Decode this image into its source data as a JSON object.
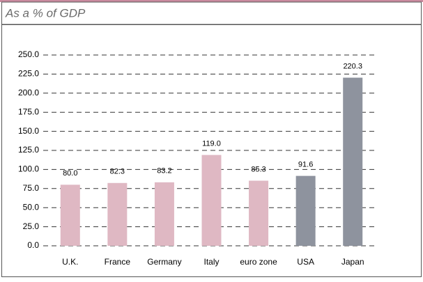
{
  "chart_data": {
    "type": "bar",
    "title": "As a % of GDP",
    "categories": [
      "U.K.",
      "France",
      "Germany",
      "Italy",
      "euro zone",
      "USA",
      "Japan"
    ],
    "values": [
      80.0,
      82.3,
      83.2,
      119.0,
      85.3,
      91.6,
      220.3
    ],
    "value_labels": [
      "80.0",
      "82.3",
      "83.2",
      "119.0",
      "85.3",
      "91.6",
      "220.3"
    ],
    "colors": [
      "#dfb8c3",
      "#dfb8c3",
      "#dfb8c3",
      "#dfb8c3",
      "#dfb8c3",
      "#8e939e",
      "#8e939e"
    ],
    "ylim": [
      0,
      250
    ],
    "yticks": [
      {
        "value": 0,
        "label": "0.0"
      },
      {
        "value": 25,
        "label": "25.0"
      },
      {
        "value": 50,
        "label": "50.0"
      },
      {
        "value": 75,
        "label": "75.0"
      },
      {
        "value": 100,
        "label": "100.0"
      },
      {
        "value": 125,
        "label": "125.0"
      },
      {
        "value": 150,
        "label": "150.0"
      },
      {
        "value": 175,
        "label": "175.0"
      },
      {
        "value": 200,
        "label": "200.0"
      },
      {
        "value": 225,
        "label": "225.0"
      },
      {
        "value": 250,
        "label": "250.0"
      }
    ],
    "grid": true
  }
}
